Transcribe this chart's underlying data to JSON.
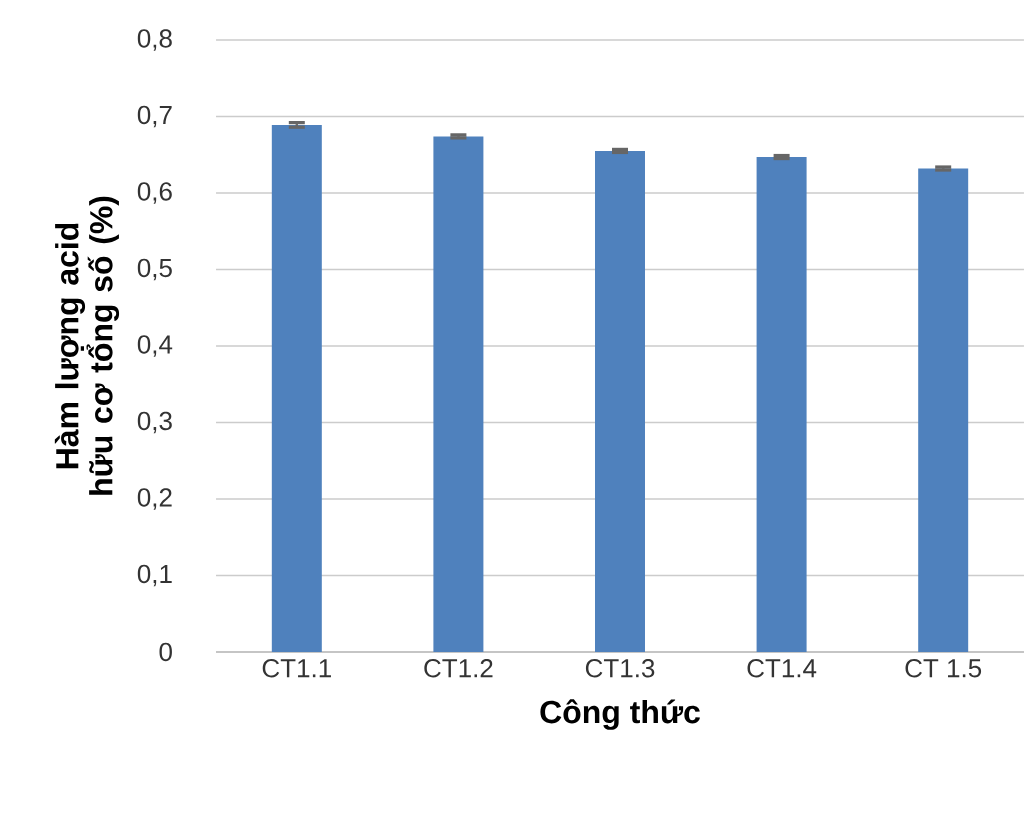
{
  "chart_data": {
    "type": "bar",
    "xlabel": "Công thức",
    "ylabel": "Hàm lượng acid hữu cơ tổng số (%)",
    "categories": [
      "CT1.1",
      "CT1.2",
      "CT1.3",
      "CT1.4",
      "CT 1.5"
    ],
    "values": [
      0.689,
      0.674,
      0.655,
      0.647,
      0.632
    ],
    "errors": [
      0.003,
      0.002,
      0.002,
      0.002,
      0.002
    ],
    "color": "#4f81bd",
    "ylim": [
      0,
      0.8
    ],
    "yticks": [
      {
        "value": 0,
        "label": "0"
      },
      {
        "value": 0.1,
        "label": "0,1"
      },
      {
        "value": 0.2,
        "label": "0,2"
      },
      {
        "value": 0.3,
        "label": "0,3"
      },
      {
        "value": 0.4,
        "label": "0,4"
      },
      {
        "value": 0.5,
        "label": "0,5"
      },
      {
        "value": 0.6,
        "label": "0,6"
      },
      {
        "value": 0.7,
        "label": "0,7"
      },
      {
        "value": 0.8,
        "label": "0,8"
      }
    ],
    "grid": "y"
  }
}
